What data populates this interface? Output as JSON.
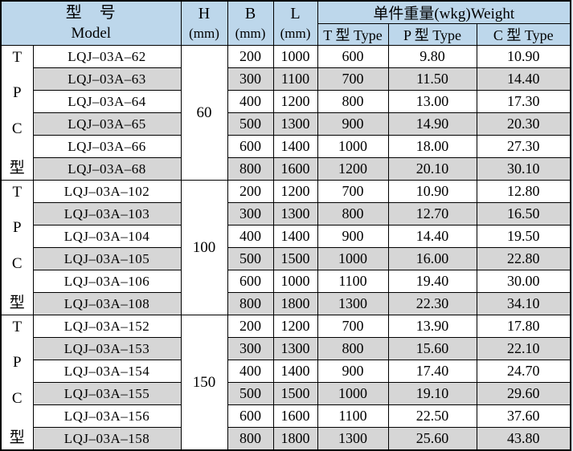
{
  "colors": {
    "header_bg": "#bdd7eb",
    "row_shade": "#d6d6d6",
    "border": "#000000",
    "page_bg": "#dbe5ef"
  },
  "header": {
    "model_cn": "型　号",
    "model_en": "Model",
    "h_label": "H",
    "h_unit": "(mm)",
    "b_label": "B",
    "b_unit": "(mm)",
    "l_label": "L",
    "l_unit": "(mm)",
    "weight_label": "单件重量(wkg)Weight",
    "weight_cols": [
      "T 型 Type",
      "P 型 Type",
      "C 型 Type"
    ]
  },
  "blocks": [
    {
      "h": "60",
      "side_labels": [
        "T",
        "P",
        "C",
        "型"
      ],
      "rows": [
        {
          "model": "LQJ–03A–62",
          "b": "200",
          "l": "1000",
          "t": "600",
          "p": "9.80",
          "c": "10.90",
          "shaded": false
        },
        {
          "model": "LQJ–03A–63",
          "b": "300",
          "l": "1100",
          "t": "700",
          "p": "11.50",
          "c": "14.40",
          "shaded": true
        },
        {
          "model": "LQJ–03A–64",
          "b": "400",
          "l": "1200",
          "t": "800",
          "p": "13.00",
          "c": "17.30",
          "shaded": false
        },
        {
          "model": "LQJ–03A–65",
          "b": "500",
          "l": "1300",
          "t": "900",
          "p": "14.90",
          "c": "20.30",
          "shaded": true
        },
        {
          "model": "LQJ–03A–66",
          "b": "600",
          "l": "1400",
          "t": "1000",
          "p": "18.00",
          "c": "27.30",
          "shaded": false
        },
        {
          "model": "LQJ–03A–68",
          "b": "800",
          "l": "1600",
          "t": "1200",
          "p": "20.10",
          "c": "30.10",
          "shaded": true
        }
      ]
    },
    {
      "h": "100",
      "side_labels": [
        "T",
        "P",
        "C",
        "型"
      ],
      "rows": [
        {
          "model": "LQJ–03A–102",
          "b": "200",
          "l": "1200",
          "t": "700",
          "p": "10.90",
          "c": "12.80",
          "shaded": false
        },
        {
          "model": "LQJ–03A–103",
          "b": "300",
          "l": "1300",
          "t": "800",
          "p": "12.70",
          "c": "16.50",
          "shaded": true
        },
        {
          "model": "LQJ–03A–104",
          "b": "400",
          "l": "1400",
          "t": "900",
          "p": "14.40",
          "c": "19.50",
          "shaded": false
        },
        {
          "model": "LQJ–03A–105",
          "b": "500",
          "l": "1500",
          "t": "1000",
          "p": "16.00",
          "c": "22.80",
          "shaded": true
        },
        {
          "model": "LQJ–03A–106",
          "b": "600",
          "l": "1000",
          "t": "1100",
          "p": "19.40",
          "c": "30.00",
          "shaded": false
        },
        {
          "model": "LQJ–03A–108",
          "b": "800",
          "l": "1800",
          "t": "1300",
          "p": "22.30",
          "c": "34.10",
          "shaded": true
        }
      ]
    },
    {
      "h": "150",
      "side_labels": [
        "T",
        "P",
        "C",
        "型"
      ],
      "rows": [
        {
          "model": "LQJ–03A–152",
          "b": "200",
          "l": "1200",
          "t": "700",
          "p": "13.90",
          "c": "17.80",
          "shaded": false
        },
        {
          "model": "LQJ–03A–153",
          "b": "300",
          "l": "1300",
          "t": "800",
          "p": "15.60",
          "c": "22.10",
          "shaded": true
        },
        {
          "model": "LQJ–03A–154",
          "b": "400",
          "l": "1400",
          "t": "900",
          "p": "17.40",
          "c": "24.70",
          "shaded": false
        },
        {
          "model": "LQJ–03A–155",
          "b": "500",
          "l": "1500",
          "t": "1000",
          "p": "19.10",
          "c": "29.60",
          "shaded": true
        },
        {
          "model": "LQJ–03A–156",
          "b": "600",
          "l": "1600",
          "t": "1100",
          "p": "22.50",
          "c": "37.60",
          "shaded": false
        },
        {
          "model": "LQJ–03A–158",
          "b": "800",
          "l": "1800",
          "t": "1300",
          "p": "25.60",
          "c": "43.80",
          "shaded": true
        }
      ]
    }
  ]
}
